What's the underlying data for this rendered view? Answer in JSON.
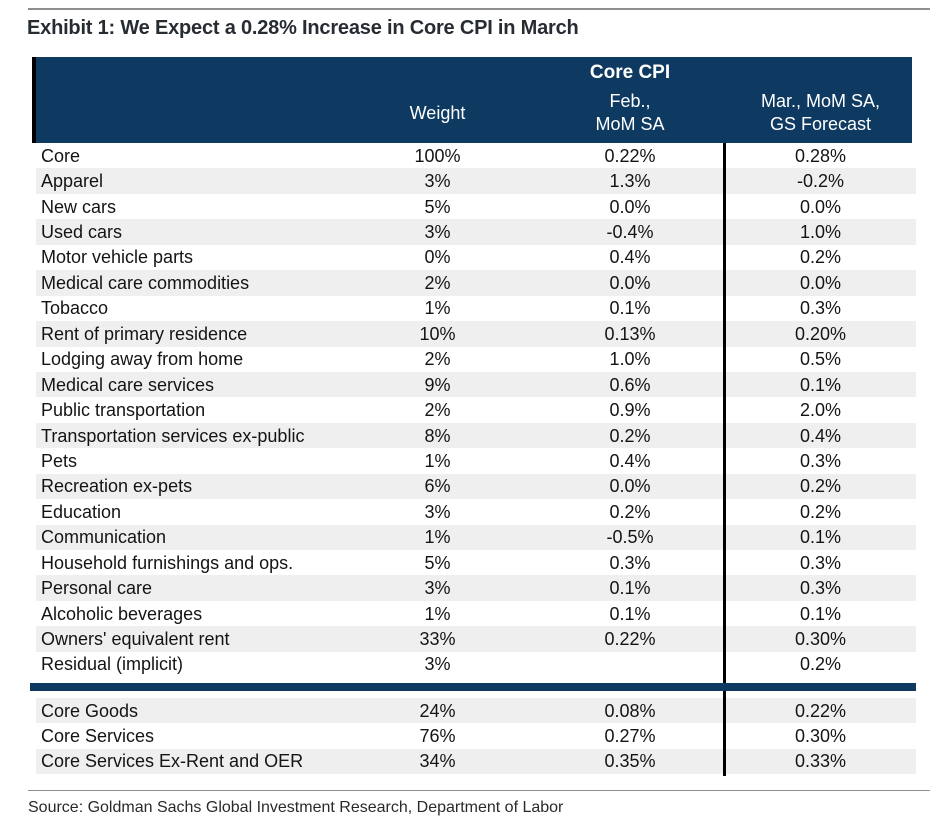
{
  "title": "Exhibit 1: We Expect a 0.28% Increase in Core CPI in March",
  "source": "Source: Goldman Sachs Global Investment Research, Department of Labor",
  "colors": {
    "header_bg": "#0e3a62",
    "section_bar": "#0e3a62",
    "row_stripe": "#efefef",
    "column_divider": "#000000",
    "header_text": "#ffffff",
    "title_text": "#272c33"
  },
  "chart_data": {
    "type": "table",
    "title": "Exhibit 1: We Expect a 0.28% Increase in Core CPI in March",
    "group_header": "Core CPI",
    "columns": {
      "category": "",
      "weight": "Weight",
      "feb": "Feb.,\nMoM SA",
      "mar": "Mar., MoM SA,\nGS Forecast"
    },
    "rows": [
      [
        "Core",
        "100%",
        "0.22%",
        "0.28%"
      ],
      [
        "Apparel",
        "3%",
        "1.3%",
        "-0.2%"
      ],
      [
        "New cars",
        "5%",
        "0.0%",
        "0.0%"
      ],
      [
        "Used cars",
        "3%",
        "-0.4%",
        "1.0%"
      ],
      [
        "Motor vehicle parts",
        "0%",
        "0.4%",
        "0.2%"
      ],
      [
        "Medical care commodities",
        "2%",
        "0.0%",
        "0.0%"
      ],
      [
        "Tobacco",
        "1%",
        "0.1%",
        "0.3%"
      ],
      [
        "Rent of primary residence",
        "10%",
        "0.13%",
        "0.20%"
      ],
      [
        "Lodging away from home",
        "2%",
        "1.0%",
        "0.5%"
      ],
      [
        "Medical care services",
        "9%",
        "0.6%",
        "0.1%"
      ],
      [
        "Public transportation",
        "2%",
        "0.9%",
        "2.0%"
      ],
      [
        "Transportation services ex-public",
        "8%",
        "0.2%",
        "0.4%"
      ],
      [
        "Pets",
        "1%",
        "0.4%",
        "0.3%"
      ],
      [
        "Recreation ex-pets",
        "6%",
        "0.0%",
        "0.2%"
      ],
      [
        "Education",
        "3%",
        "0.2%",
        "0.2%"
      ],
      [
        "Communication",
        "1%",
        "-0.5%",
        "0.1%"
      ],
      [
        "Household furnishings and ops.",
        "5%",
        "0.3%",
        "0.3%"
      ],
      [
        "Personal care",
        "3%",
        "0.1%",
        "0.3%"
      ],
      [
        "Alcoholic beverages",
        "1%",
        "0.1%",
        "0.1%"
      ],
      [
        "Owners' equivalent rent",
        "33%",
        "0.22%",
        "0.30%"
      ],
      [
        "Residual (implicit)",
        "3%",
        "",
        "0.2%"
      ]
    ],
    "summary_rows": [
      [
        "Core Goods",
        "24%",
        "0.08%",
        "0.22%"
      ],
      [
        "Core Services",
        "76%",
        "0.27%",
        "0.30%"
      ],
      [
        "Core Services Ex-Rent and OER",
        "34%",
        "0.35%",
        "0.33%"
      ]
    ],
    "source": "Source: Goldman Sachs Global Investment Research, Department of Labor"
  }
}
